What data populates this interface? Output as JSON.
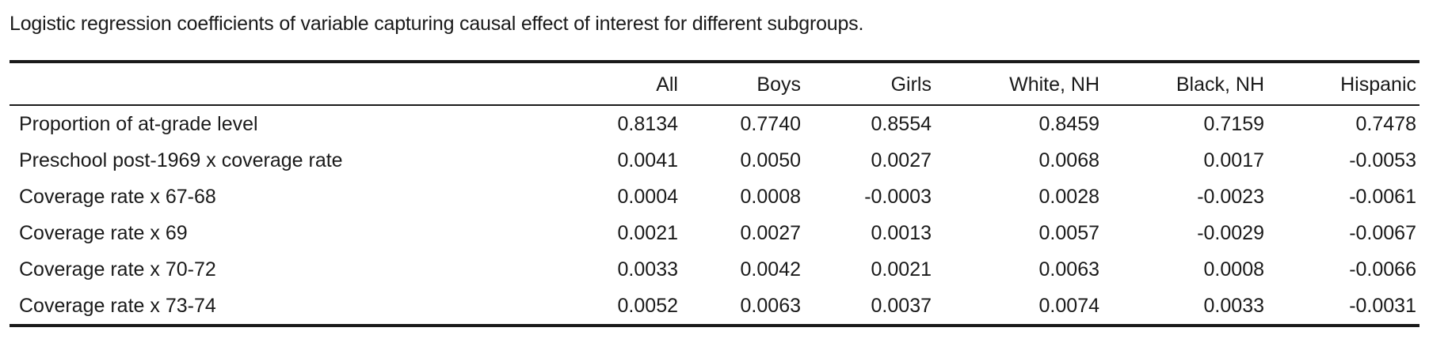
{
  "caption": "Logistic regression coefficients of variable capturing causal effect of interest for different subgroups.",
  "table": {
    "columns": [
      "",
      "All",
      "Boys",
      "Girls",
      "White, NH",
      "Black, NH",
      "Hispanic"
    ],
    "rows": [
      {
        "label": "Proportion of at-grade level",
        "values": [
          "0.8134",
          "0.7740",
          "0.8554",
          "0.8459",
          "0.7159",
          "0.7478"
        ]
      },
      {
        "label": "Preschool post-1969 x coverage rate",
        "values": [
          "0.0041",
          "0.0050",
          "0.0027",
          "0.0068",
          "0.0017",
          "-0.0053"
        ]
      },
      {
        "label": "Coverage rate x 67-68",
        "values": [
          "0.0004",
          "0.0008",
          "-0.0003",
          "0.0028",
          "-0.0023",
          "-0.0061"
        ]
      },
      {
        "label": "Coverage rate x 69",
        "values": [
          "0.0021",
          "0.0027",
          "0.0013",
          "0.0057",
          "-0.0029",
          "-0.0067"
        ]
      },
      {
        "label": "Coverage rate x 70-72",
        "values": [
          "0.0033",
          "0.0042",
          "0.0021",
          "0.0063",
          "0.0008",
          "-0.0066"
        ]
      },
      {
        "label": "Coverage rate x 73-74",
        "values": [
          "0.0052",
          "0.0063",
          "0.0037",
          "0.0074",
          "0.0033",
          "-0.0031"
        ]
      }
    ]
  }
}
